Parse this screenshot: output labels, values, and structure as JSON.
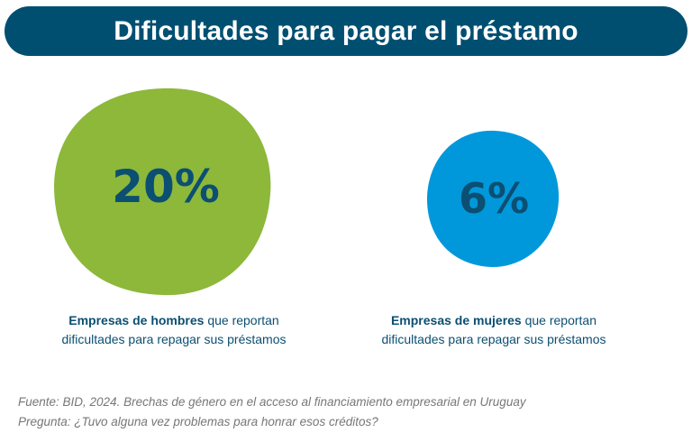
{
  "title": "Dificultades para pagar el préstamo",
  "chart_data": {
    "type": "bubble",
    "title": "Dificultades para pagar el préstamo",
    "unit": "%",
    "series": [
      {
        "name": "Empresas de hombres",
        "value": 20,
        "label": "20%",
        "color": "#8db83a",
        "caption_bold": "Empresas de hombres",
        "caption_rest": "que reportan dificultades para repagar sus préstamos"
      },
      {
        "name": "Empresas de mujeres",
        "value": 6,
        "label": "6%",
        "color": "#0098db",
        "caption_bold": "Empresas de mujeres",
        "caption_rest": "que reportan dificultades para repagar sus préstamos"
      }
    ]
  },
  "footer": {
    "source": "Fuente: BID, 2024. Brechas de género en el acceso al financiamiento empresarial en Uruguay",
    "question": "Pregunta: ¿Tuvo alguna vez problemas para honrar esos créditos?"
  }
}
